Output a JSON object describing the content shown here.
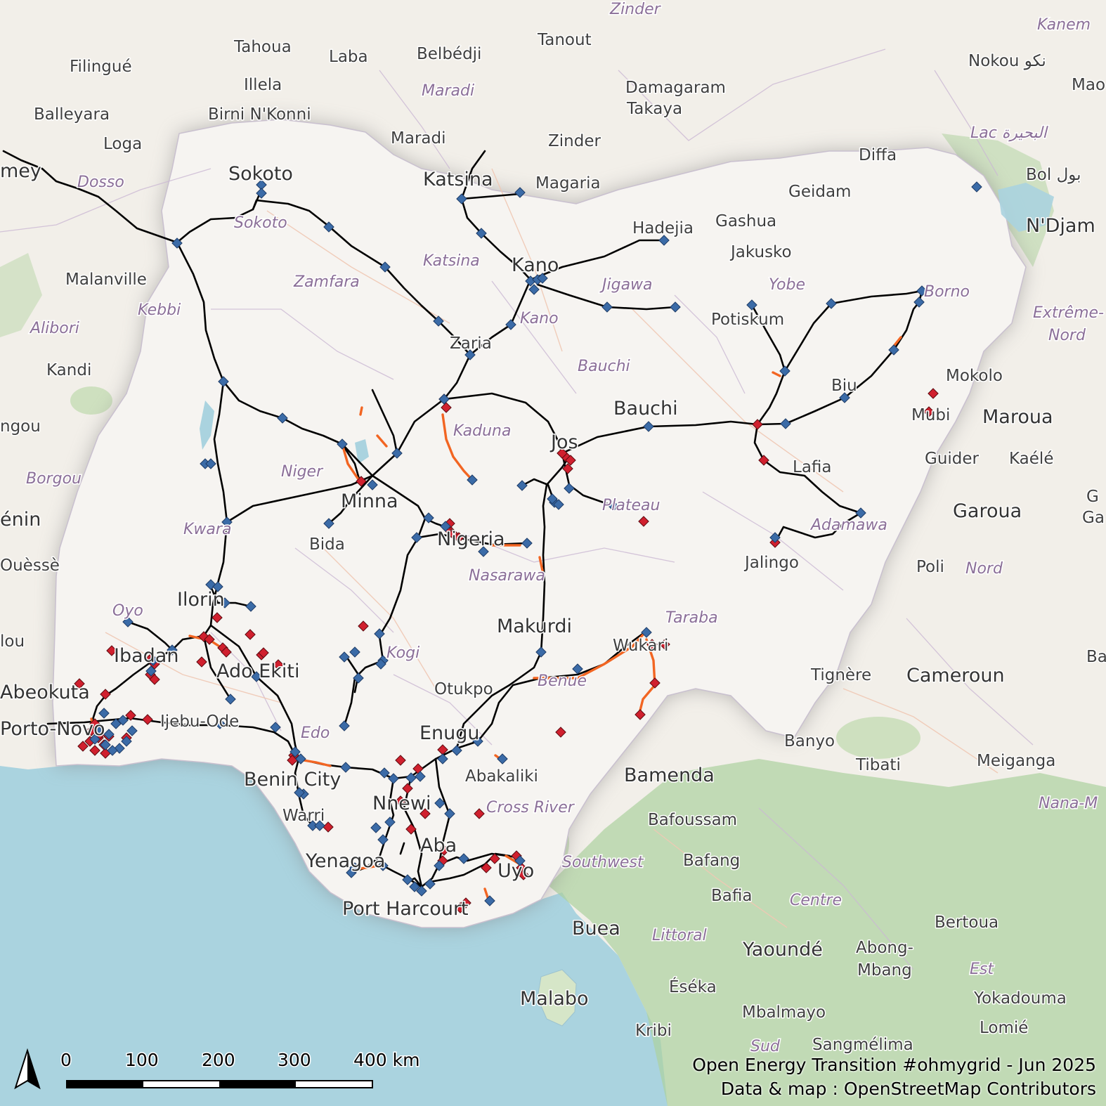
{
  "map": {
    "country": "Nigeria",
    "colors": {
      "land": "#f2efe9",
      "nigeria": "#f6f4f1",
      "water": "#aad3df",
      "forest": "#add19e",
      "line_existing": "#000000",
      "line_construction": "#f26522",
      "substation": "#3b6ba7",
      "plant": "#d0202e"
    },
    "cities": [
      {
        "name": "Sokoto",
        "size": "big"
      },
      {
        "name": "Katsina",
        "size": "big"
      },
      {
        "name": "Kano",
        "size": "big"
      },
      {
        "name": "Zaria",
        "size": "med"
      },
      {
        "name": "Bauchi",
        "size": "big"
      },
      {
        "name": "Jos",
        "size": "big"
      },
      {
        "name": "Minna",
        "size": "big"
      },
      {
        "name": "Nigeria",
        "size": "big"
      },
      {
        "name": "Bida",
        "size": "med"
      },
      {
        "name": "Ilorin",
        "size": "big"
      },
      {
        "name": "Ibadan",
        "size": "big"
      },
      {
        "name": "Ado Ekiti",
        "size": "big"
      },
      {
        "name": "Abeokuta",
        "size": "big"
      },
      {
        "name": "Porto-Novo",
        "size": "big"
      },
      {
        "name": "Ijebu-Ode",
        "size": "med"
      },
      {
        "name": "Benin City",
        "size": "big"
      },
      {
        "name": "Warri",
        "size": "med"
      },
      {
        "name": "Yenagoa",
        "size": "big"
      },
      {
        "name": "Port Harcourt",
        "size": "big"
      },
      {
        "name": "Aba",
        "size": "big"
      },
      {
        "name": "Uyo",
        "size": "big"
      },
      {
        "name": "Nnewi",
        "size": "big"
      },
      {
        "name": "Enugu",
        "size": "big"
      },
      {
        "name": "Abakaliki",
        "size": "med"
      },
      {
        "name": "Otukpo",
        "size": "med"
      },
      {
        "name": "Makurdi",
        "size": "big"
      },
      {
        "name": "Wukari",
        "size": "med"
      },
      {
        "name": "Lafia",
        "size": "med"
      },
      {
        "name": "Jalingo",
        "size": "med"
      },
      {
        "name": "Potiskum",
        "size": "med"
      },
      {
        "name": "Biu",
        "size": "med"
      },
      {
        "name": "Mubi",
        "size": "med"
      },
      {
        "name": "Hadejia",
        "size": "med"
      },
      {
        "name": "Gashua",
        "size": "med"
      },
      {
        "name": "Jakusko",
        "size": "med"
      },
      {
        "name": "Geidam",
        "size": "med"
      },
      {
        "name": "Diffa",
        "size": "med"
      },
      {
        "name": "Magaria",
        "size": "med"
      },
      {
        "name": "Zinder",
        "size": "med"
      },
      {
        "name": "Maradi",
        "size": "med"
      },
      {
        "name": "Tanout",
        "size": "med"
      },
      {
        "name": "Belbédji",
        "size": "med"
      },
      {
        "name": "Damagaram",
        "size": "med"
      },
      {
        "name": "Takaya",
        "size": "med"
      },
      {
        "name": "Tahoua",
        "size": "med"
      },
      {
        "name": "Laba",
        "size": "med"
      },
      {
        "name": "Illela",
        "size": "med"
      },
      {
        "name": "Birni N'Konni",
        "size": "med"
      },
      {
        "name": "Filingué",
        "size": "med"
      },
      {
        "name": "Balleyara",
        "size": "med"
      },
      {
        "name": "Loga",
        "size": "med"
      },
      {
        "name": "Malanville",
        "size": "med"
      },
      {
        "name": "Kandi",
        "size": "med"
      },
      {
        "name": "Bol بول",
        "size": "med"
      },
      {
        "name": "N'Djam",
        "size": "big"
      },
      {
        "name": "Nokou نكو",
        "size": "med"
      },
      {
        "name": "Mokolo",
        "size": "med"
      },
      {
        "name": "Maroua",
        "size": "big"
      },
      {
        "name": "Guider",
        "size": "med"
      },
      {
        "name": "Kaélé",
        "size": "med"
      },
      {
        "name": "Garoua",
        "size": "big"
      },
      {
        "name": "Poli",
        "size": "med"
      },
      {
        "name": "Tignère",
        "size": "med"
      },
      {
        "name": "Cameroun",
        "size": "big"
      },
      {
        "name": "Banyo",
        "size": "med"
      },
      {
        "name": "Tibati",
        "size": "med"
      },
      {
        "name": "Meiganga",
        "size": "med"
      },
      {
        "name": "Bamenda",
        "size": "big"
      },
      {
        "name": "Bafoussam",
        "size": "med"
      },
      {
        "name": "Bafang",
        "size": "med"
      },
      {
        "name": "Bafia",
        "size": "med"
      },
      {
        "name": "Buea",
        "size": "big"
      },
      {
        "name": "Malabo",
        "size": "big"
      },
      {
        "name": "Yaoundé",
        "size": "big"
      },
      {
        "name": "Abong-",
        "size": "med"
      },
      {
        "name": "Mbang",
        "size": "med"
      },
      {
        "name": "Bertoua",
        "size": "med"
      },
      {
        "name": "Éséka",
        "size": "med"
      },
      {
        "name": "Mbalmayo",
        "size": "med"
      },
      {
        "name": "Yokadouma",
        "size": "med"
      },
      {
        "name": "Lomié",
        "size": "med"
      },
      {
        "name": "Kribi",
        "size": "med"
      },
      {
        "name": "Sangmélima",
        "size": "med"
      },
      {
        "name": "Ouèssè",
        "size": "med"
      },
      {
        "name": "énin",
        "size": "big"
      },
      {
        "name": "ngou",
        "size": "med"
      },
      {
        "name": "lou",
        "size": "med"
      },
      {
        "name": "mey",
        "size": "big"
      },
      {
        "name": "Mao",
        "size": "med"
      },
      {
        "name": "Ga",
        "size": "med"
      },
      {
        "name": "Ba",
        "size": "med"
      },
      {
        "name": "G",
        "size": "med"
      }
    ],
    "regions": [
      "Zinder",
      "Maradi",
      "Dosso",
      "Sokoto",
      "Katsina",
      "Zamfara",
      "Kebbi",
      "Alibori",
      "Jigawa",
      "Kano",
      "Yobe",
      "Borno",
      "Bauchi",
      "Kaduna",
      "Niger",
      "Plateau",
      "Kwara",
      "Nasarawa",
      "Adamawa",
      "Oyo",
      "Kogi",
      "Taraba",
      "Benue",
      "Edo",
      "Cross River",
      "Southwest",
      "Centre",
      "Littoral",
      "Est",
      "Sud",
      "Nord",
      "Extrême-",
      "Nord",
      "Lac البحيرة",
      "Kanem",
      "Borgou",
      "Nana-M"
    ],
    "scale_bar": {
      "ticks": [
        "0",
        "100",
        "200",
        "300",
        "400 km"
      ]
    },
    "credits": {
      "line1": "Open Energy Transition #ohmygrid - Jun 2025",
      "line2": "Data & map : OpenStreetMap Contributors"
    }
  }
}
